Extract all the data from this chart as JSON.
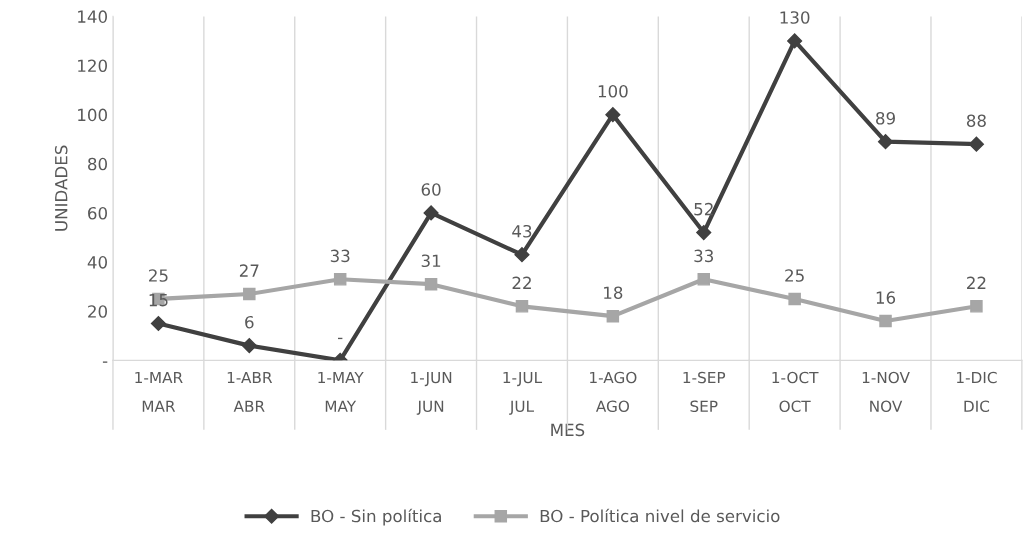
{
  "chart_data": {
    "type": "line",
    "xlabel": "MES",
    "ylabel": "UNIDADES",
    "categories": [
      "1-MAR\nMAR",
      "1-ABR\nABR",
      "1-MAY\nMAY",
      "1-JUN\nJUN",
      "1-JUL\nJUL",
      "1-AGO\nAGO",
      "1-SEP\nSEP",
      "1-OCT\nOCT",
      "1-NOV\nNOV",
      "1-DIC\nDIC"
    ],
    "series": [
      {
        "name": "BO - Sin política",
        "color": "#404040",
        "marker": "diamond",
        "values": [
          15,
          6,
          0,
          60,
          43,
          100,
          52,
          130,
          89,
          88
        ],
        "value_labels": [
          "15",
          "6",
          "-",
          "60",
          "43",
          "100",
          "52",
          "130",
          "89",
          "88"
        ]
      },
      {
        "name": "BO - Política nivel de servicio",
        "color": "#a6a6a6",
        "marker": "square",
        "values": [
          25,
          27,
          33,
          31,
          22,
          18,
          33,
          25,
          16,
          22
        ],
        "value_labels": [
          "25",
          "27",
          "33",
          "31",
          "22",
          "18",
          "33",
          "25",
          "16",
          "22"
        ]
      }
    ],
    "ylim": [
      0,
      140
    ],
    "yticks": [
      {
        "value": 0,
        "label": "-"
      },
      20,
      40,
      60,
      80,
      100,
      120,
      140
    ],
    "grid": "x",
    "legend": "bottom",
    "line_style": "solid"
  }
}
